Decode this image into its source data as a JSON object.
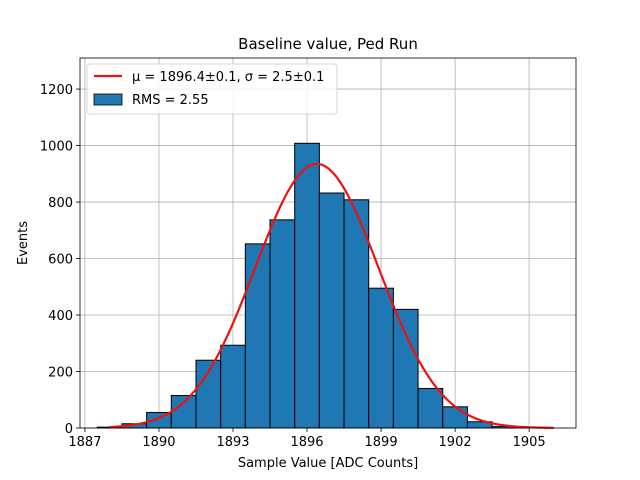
{
  "chart_data": {
    "type": "bar",
    "title": "Baseline value, Ped Run",
    "xlabel": "Sample Value [ADC Counts]",
    "ylabel": "Events",
    "xlim": [
      1886.8,
      1906.9
    ],
    "ylim": [
      0,
      1310
    ],
    "xticks": [
      "1887",
      "1890",
      "1893",
      "1896",
      "1899",
      "1902",
      "1905"
    ],
    "yticks": [
      "0",
      "200",
      "400",
      "600",
      "800",
      "1000",
      "1200"
    ],
    "grid": true,
    "legend_position": "upper-left",
    "bins": [
      {
        "left": 1887.5,
        "right": 1888.5,
        "value": 3
      },
      {
        "left": 1888.5,
        "right": 1889.5,
        "value": 15
      },
      {
        "left": 1889.5,
        "right": 1890.5,
        "value": 55
      },
      {
        "left": 1890.5,
        "right": 1891.5,
        "value": 115
      },
      {
        "left": 1891.5,
        "right": 1892.5,
        "value": 240
      },
      {
        "left": 1892.5,
        "right": 1893.5,
        "value": 293
      },
      {
        "left": 1893.5,
        "right": 1894.5,
        "value": 652
      },
      {
        "left": 1894.5,
        "right": 1895.5,
        "value": 737
      },
      {
        "left": 1895.5,
        "right": 1896.5,
        "value": 1008
      },
      {
        "left": 1896.5,
        "right": 1897.5,
        "value": 832
      },
      {
        "left": 1897.5,
        "right": 1898.5,
        "value": 808
      },
      {
        "left": 1898.5,
        "right": 1899.5,
        "value": 495
      },
      {
        "left": 1899.5,
        "right": 1900.5,
        "value": 420
      },
      {
        "left": 1900.5,
        "right": 1901.5,
        "value": 140
      },
      {
        "left": 1901.5,
        "right": 1902.5,
        "value": 75
      },
      {
        "left": 1902.5,
        "right": 1903.5,
        "value": 22
      },
      {
        "left": 1903.5,
        "right": 1904.5,
        "value": 5
      },
      {
        "left": 1904.5,
        "right": 1905.5,
        "value": 2
      }
    ],
    "fit": {
      "mu": 1896.4,
      "sigma": 2.5,
      "amplitude": 935,
      "x_range": [
        1888.0,
        1906.0
      ]
    },
    "legend": [
      {
        "label": "μ = 1896.4±0.1, σ = 2.5±0.1",
        "kind": "line",
        "color": "#ee1111"
      },
      {
        "label": "RMS = 2.55",
        "kind": "patch",
        "color": "#1f77b4"
      }
    ],
    "colors": {
      "bar_fill": "#1f77b4",
      "bar_edge": "#000000",
      "fit_line": "#ee1111"
    }
  }
}
